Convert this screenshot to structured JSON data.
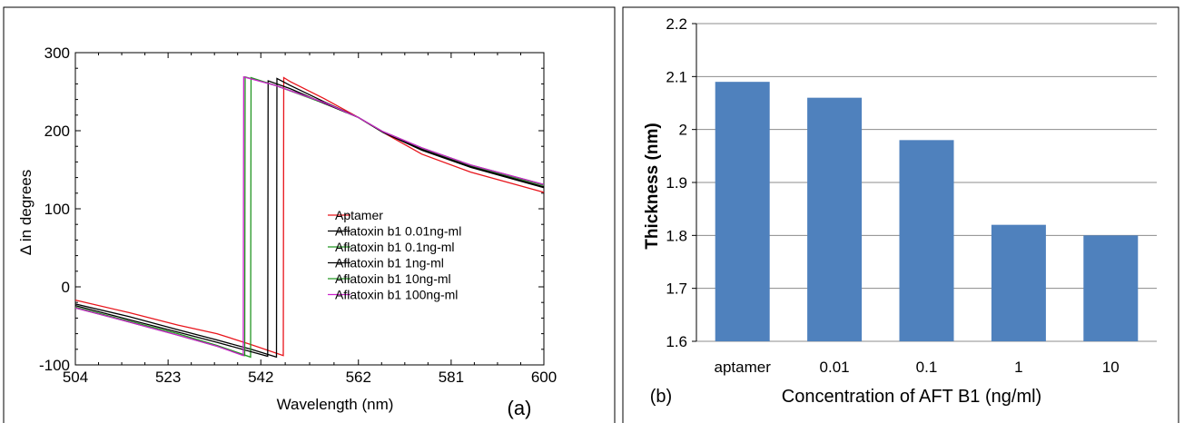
{
  "chart_data": [
    {
      "type": "line",
      "panel_label": "(a)",
      "xlabel": "Wavelength (nm)",
      "ylabel": "Δ in degrees",
      "xlim": [
        504,
        600
      ],
      "ylim": [
        -100,
        300
      ],
      "xticks": [
        "504",
        "523",
        "542",
        "562",
        "581",
        "600"
      ],
      "yticks": [
        "-100",
        "0",
        "100",
        "200",
        "300"
      ],
      "legend_position": "right-center",
      "series": [
        {
          "name": "Aptamer",
          "color": "#e8141b",
          "x": [
            504,
            515,
            525,
            533,
            540,
            546.6,
            546.7,
            548,
            555,
            562,
            567,
            575,
            585,
            600
          ],
          "y": [
            -17,
            -33,
            -49,
            -60,
            -74,
            -88,
            268,
            263,
            241,
            217,
            198,
            170,
            147,
            121
          ]
        },
        {
          "name": "Aflatoxin b1 0.01ng-ml",
          "color": "#000000",
          "x": [
            504,
            515,
            525,
            533,
            540,
            545.2,
            545.3,
            548,
            555,
            562,
            567,
            575,
            585,
            600
          ],
          "y": [
            -22,
            -38,
            -55,
            -68,
            -80,
            -90,
            267,
            258,
            237,
            217,
            198,
            175,
            153,
            127
          ]
        },
        {
          "name": "Aflatoxin b1 0.1ng-ml",
          "color": "#239623",
          "x": [
            504,
            515,
            525,
            533,
            539.9,
            540.0,
            545,
            555,
            562,
            567,
            575,
            585,
            600
          ],
          "y": [
            -26,
            -44,
            -60,
            -75,
            -90,
            268,
            258,
            235,
            217,
            198,
            177,
            155,
            130
          ]
        },
        {
          "name": "Aflatoxin b1 1ng-ml",
          "color": "#000000",
          "x": [
            504,
            515,
            525,
            533,
            543.4,
            543.5,
            548,
            555,
            562,
            567,
            575,
            585,
            600
          ],
          "y": [
            -24,
            -42,
            -58,
            -71,
            -89,
            264,
            254,
            235,
            217,
            198,
            176,
            154,
            128
          ]
        },
        {
          "name": "Aflatoxin b1 10ng-ml",
          "color": "#239623",
          "x": [
            504,
            515,
            525,
            533,
            538.7,
            538.8,
            545,
            555,
            562,
            567,
            575,
            585,
            600
          ],
          "y": [
            -27,
            -45,
            -62,
            -76,
            -88,
            269,
            258,
            236,
            217,
            199,
            178,
            156,
            131
          ]
        },
        {
          "name": "Aflatoxin b1 100ng-ml",
          "color": "#cc22cc",
          "x": [
            504,
            515,
            525,
            533,
            538.4,
            538.5,
            545,
            555,
            562,
            567,
            575,
            585,
            600
          ],
          "y": [
            -27,
            -45,
            -62,
            -76,
            -88,
            269,
            258,
            236,
            217,
            199,
            178,
            156,
            131
          ]
        }
      ]
    },
    {
      "type": "bar",
      "panel_label": "(b)",
      "xlabel": "Concentration of AFT B1 (ng/ml)",
      "ylabel": "Thickness (nm)",
      "ylim": [
        1.6,
        2.2
      ],
      "yticks": [
        "1.6",
        "1.7",
        "1.8",
        "1.9",
        "2",
        "2.1",
        "2.2"
      ],
      "categories": [
        "aptamer",
        "0.01",
        "0.1",
        "1",
        "10"
      ],
      "values": [
        2.09,
        2.06,
        1.98,
        1.82,
        1.8
      ],
      "bar_color": "#4f81bd",
      "grid": true
    }
  ]
}
